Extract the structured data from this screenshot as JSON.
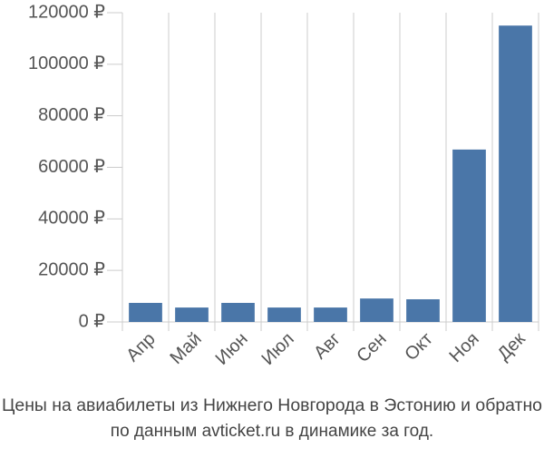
{
  "chart_data": {
    "type": "bar",
    "title": "Цены на авиабилеты из Нижнего Новгорода в Эстонию и обратно",
    "subtitle": "по данным avticket.ru в динамике за год.",
    "categories": [
      "Апр",
      "Май",
      "Июн",
      "Июл",
      "Авг",
      "Сен",
      "Окт",
      "Ноя",
      "Дек"
    ],
    "values": [
      7400,
      5600,
      7400,
      5600,
      5600,
      9100,
      8800,
      66900,
      115000
    ],
    "color": "#4a76a8",
    "ylim": [
      0,
      120000
    ],
    "yticks": [
      {
        "value": 0,
        "label": "0 ₽"
      },
      {
        "value": 20000,
        "label": "20000 ₽"
      },
      {
        "value": 40000,
        "label": "40000 ₽"
      },
      {
        "value": 60000,
        "label": "60000 ₽"
      },
      {
        "value": 80000,
        "label": "80000 ₽"
      },
      {
        "value": 100000,
        "label": "100000 ₽"
      },
      {
        "value": 120000,
        "label": "120000 ₽"
      }
    ],
    "grid": true
  }
}
